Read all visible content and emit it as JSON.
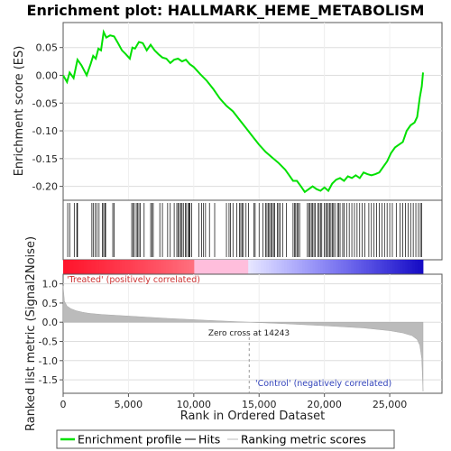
{
  "chart_data": {
    "type": "line",
    "title": "Enrichment plot: HALLMARK_HEME_METABOLISM",
    "top_panel": {
      "ylabel": "Enrichment score (ES)",
      "ylim": [
        -0.225,
        0.095
      ],
      "yticks": [
        0.05,
        0.0,
        -0.05,
        -0.1,
        -0.15,
        -0.2
      ],
      "ytick_labels": [
        "0.05",
        "0.00",
        "-0.05",
        "-0.10",
        "-0.15",
        "-0.20"
      ],
      "grid": true,
      "series": [
        {
          "name": "Enrichment profile",
          "color": "#00e000",
          "x": [
            0,
            300,
            500,
            800,
            1100,
            1400,
            1800,
            2100,
            2300,
            2500,
            2700,
            2900,
            3100,
            3300,
            3600,
            3900,
            4200,
            4500,
            4800,
            5100,
            5300,
            5500,
            5800,
            6100,
            6400,
            6700,
            7000,
            7300,
            7600,
            7900,
            8200,
            8500,
            8800,
            9100,
            9400,
            9700,
            10000,
            10500,
            11000,
            11500,
            12000,
            12500,
            13000,
            13500,
            14000,
            14500,
            15000,
            15500,
            16000,
            16500,
            17000,
            17300,
            17600,
            17900,
            18200,
            18500,
            18800,
            19100,
            19400,
            19700,
            20000,
            20300,
            20600,
            20900,
            21200,
            21500,
            21800,
            22100,
            22400,
            22700,
            23000,
            23300,
            23600,
            23900,
            24200,
            24500,
            24800,
            25100,
            25400,
            25700,
            26000,
            26300,
            26600,
            26900,
            27100,
            27300,
            27450,
            27550
          ],
          "y": [
            0.0,
            -0.012,
            0.005,
            -0.005,
            0.028,
            0.018,
            0.0,
            0.02,
            0.035,
            0.03,
            0.048,
            0.045,
            0.078,
            0.068,
            0.072,
            0.07,
            0.058,
            0.045,
            0.038,
            0.03,
            0.05,
            0.048,
            0.06,
            0.058,
            0.045,
            0.055,
            0.045,
            0.038,
            0.032,
            0.03,
            0.022,
            0.028,
            0.03,
            0.025,
            0.028,
            0.02,
            0.015,
            0.002,
            -0.01,
            -0.025,
            -0.042,
            -0.055,
            -0.065,
            -0.08,
            -0.095,
            -0.11,
            -0.125,
            -0.138,
            -0.148,
            -0.158,
            -0.17,
            -0.18,
            -0.19,
            -0.19,
            -0.2,
            -0.21,
            -0.205,
            -0.2,
            -0.205,
            -0.208,
            -0.202,
            -0.208,
            -0.195,
            -0.188,
            -0.185,
            -0.19,
            -0.182,
            -0.185,
            -0.18,
            -0.185,
            -0.175,
            -0.178,
            -0.18,
            -0.178,
            -0.175,
            -0.165,
            -0.155,
            -0.14,
            -0.13,
            -0.125,
            -0.12,
            -0.1,
            -0.09,
            -0.085,
            -0.075,
            -0.04,
            -0.02,
            0.005
          ]
        }
      ]
    },
    "hits_panel": {
      "hit_positions": [
        350,
        500,
        850,
        1050,
        1100,
        2200,
        2300,
        2450,
        2600,
        2750,
        3000,
        3100,
        3200,
        3250,
        3800,
        3900,
        5250,
        5350,
        5450,
        5600,
        5700,
        5800,
        5900,
        6200,
        6700,
        6800,
        6900,
        7400,
        7600,
        8000,
        8200,
        8500,
        8700,
        8800,
        8900,
        9000,
        9100,
        9200,
        9350,
        9450,
        9600,
        9650,
        9700,
        9850,
        10400,
        10600,
        10750,
        10900,
        11200,
        11600,
        12500,
        12700,
        12800,
        13000,
        13300,
        13500,
        13600,
        13700,
        13800,
        14000,
        14200,
        14600,
        14700,
        15000,
        15300,
        15500,
        15600,
        15700,
        15800,
        15900,
        16000,
        16100,
        16200,
        16400,
        16500,
        16600,
        16800,
        17100,
        17600,
        17700,
        17800,
        17900,
        18000,
        18100,
        18700,
        18800,
        18900,
        19000,
        19100,
        19200,
        19300,
        19500,
        19600,
        19700,
        19800,
        20000,
        20100,
        20200,
        20300,
        20400,
        20500,
        20600,
        20700,
        20800,
        21000,
        21100,
        21200,
        21400,
        21500,
        21700,
        21900,
        22100,
        22300,
        22500,
        22700,
        22900,
        23100,
        23400,
        23600,
        23800,
        24000,
        24200,
        24400,
        24600,
        24800,
        25000,
        25200,
        25500,
        25800,
        26000,
        26200,
        26400,
        26600,
        26800,
        27000,
        27200,
        27350,
        27450
      ]
    },
    "metric_panel": {
      "ylabel": "Ranked list metric (Signal2Noise)",
      "ylim": [
        -1.85,
        1.25
      ],
      "yticks": [
        1.0,
        0.5,
        0.0,
        -0.5,
        -1.0,
        -1.5
      ],
      "ytick_labels": [
        "1.0",
        "0.5",
        "0.0",
        "-0.5",
        "-1.0",
        "-1.5"
      ],
      "grid": true,
      "x": [
        0,
        100,
        300,
        600,
        1000,
        1500,
        2000,
        3000,
        5000,
        8000,
        11000,
        14243,
        17000,
        20000,
        23000,
        25000,
        26000,
        26700,
        27100,
        27300,
        27450,
        27550
      ],
      "values": [
        0.95,
        0.55,
        0.42,
        0.35,
        0.3,
        0.26,
        0.23,
        0.2,
        0.16,
        0.1,
        0.05,
        0.0,
        -0.04,
        -0.09,
        -0.15,
        -0.22,
        -0.28,
        -0.35,
        -0.45,
        -0.6,
        -0.95,
        -1.8
      ],
      "xlabel": "Rank in Ordered Dataset",
      "xlim": [
        0,
        29000
      ],
      "xticks": [
        0,
        5000,
        10000,
        15000,
        20000,
        25000
      ],
      "xtick_labels": [
        "0",
        "5,000",
        "10,000",
        "15,000",
        "20,000",
        "25,000"
      ],
      "zero_cross": 14243,
      "zero_cross_label": "Zero cross at 14243",
      "treated_label": "'Treated' (positively correlated)",
      "control_label": "'Control' (negatively correlated)",
      "fill_color": "#bbbbbb"
    },
    "legend": {
      "placement": "bottom",
      "entries": [
        {
          "label": "Enrichment profile",
          "color": "#00e000"
        },
        {
          "label": "Hits",
          "color": "#000000"
        },
        {
          "label": "Ranking metric scores",
          "color": "#bbbbbb"
        }
      ]
    },
    "total_genes": 27550
  }
}
